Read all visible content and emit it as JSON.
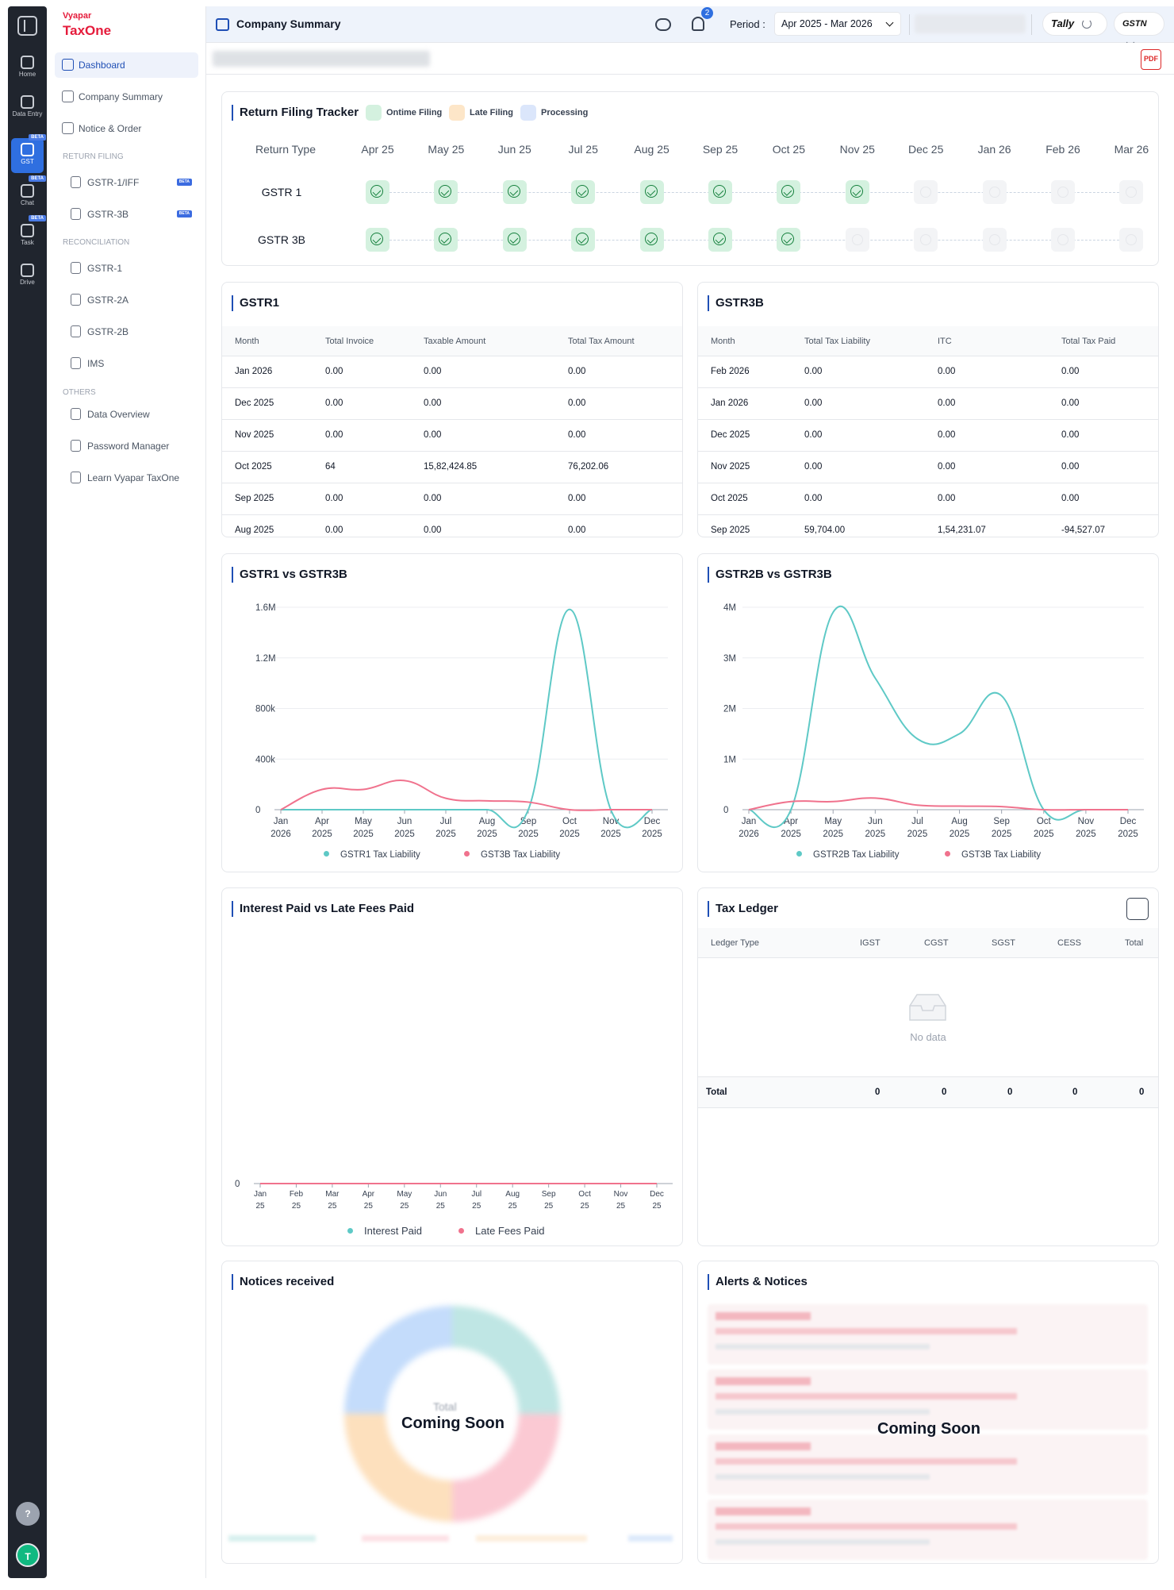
{
  "rail": {
    "items": [
      {
        "label": "Home",
        "beta": ""
      },
      {
        "label": "Data Entry",
        "beta": ""
      },
      {
        "label": "GST",
        "beta": "BETA"
      },
      {
        "label": "Chat",
        "beta": "BETA"
      },
      {
        "label": "Task",
        "beta": "BETA"
      },
      {
        "label": "Drive",
        "beta": ""
      }
    ],
    "help": "?",
    "avatar": "T"
  },
  "sidebar": {
    "logo_top": "Vyapar",
    "logo_bottom": "TaxOne",
    "dashboard": "Dashboard",
    "company_summary": "Company Summary",
    "notice_order": "Notice & Order",
    "section_return": "RETURN FILING",
    "gstr1_iff": "GSTR-1/IFF",
    "gstr3b": "GSTR-3B",
    "beta": "BETA",
    "section_recon": "RECONCILIATION",
    "gstr1": "GSTR-1",
    "gstr2a": "GSTR-2A",
    "gstr2b": "GSTR-2B",
    "ims": "IMS",
    "section_others": "OTHERS",
    "data_overview": "Data Overview",
    "password_manager": "Password Manager",
    "learn": "Learn Vyapar TaxOne"
  },
  "header": {
    "title": "Company Summary",
    "notif_count": "2",
    "period_label": "Period :",
    "period_value": "Apr 2025 - Mar 2026",
    "tally": "Tally",
    "gstn": "GSTN"
  },
  "tracker": {
    "title": "Return Filing Tracker",
    "legend": {
      "ontime": "Ontime Filing",
      "late": "Late Filing",
      "processing": "Processing"
    },
    "col_return_type": "Return Type",
    "months": [
      "Apr 25",
      "May 25",
      "Jun 25",
      "Jul 25",
      "Aug 25",
      "Sep 25",
      "Oct 25",
      "Nov 25",
      "Dec 25",
      "Jan 26",
      "Feb 26",
      "Mar 26"
    ],
    "rows": [
      {
        "label": "GSTR 1",
        "filed": 8
      },
      {
        "label": "GSTR 3B",
        "filed": 7
      }
    ]
  },
  "gstr1": {
    "title": "GSTR1",
    "headers": [
      "Month",
      "Total Invoice",
      "Taxable Amount",
      "Total Tax Amount"
    ],
    "rows": [
      [
        "Jan 2026",
        "0.00",
        "0.00",
        "0.00"
      ],
      [
        "Dec 2025",
        "0.00",
        "0.00",
        "0.00"
      ],
      [
        "Nov 2025",
        "0.00",
        "0.00",
        "0.00"
      ],
      [
        "Oct 2025",
        "64",
        "15,82,424.85",
        "76,202.06"
      ],
      [
        "Sep 2025",
        "0.00",
        "0.00",
        "0.00"
      ],
      [
        "Aug 2025",
        "0.00",
        "0.00",
        "0.00"
      ]
    ]
  },
  "gstr3b": {
    "title": "GSTR3B",
    "headers": [
      "Month",
      "Total Tax Liability",
      "ITC",
      "Total Tax Paid"
    ],
    "rows": [
      [
        "Feb 2026",
        "0.00",
        "0.00",
        "0.00"
      ],
      [
        "Jan 2026",
        "0.00",
        "0.00",
        "0.00"
      ],
      [
        "Dec 2025",
        "0.00",
        "0.00",
        "0.00"
      ],
      [
        "Nov 2025",
        "0.00",
        "0.00",
        "0.00"
      ],
      [
        "Oct 2025",
        "0.00",
        "0.00",
        "0.00"
      ],
      [
        "Sep 2025",
        "59,704.00",
        "1,54,231.07",
        "-94,527.07"
      ]
    ]
  },
  "chart_data": [
    {
      "type": "line",
      "title": "GSTR1 vs GSTR3B",
      "x": [
        "Jan 2026",
        "Apr 2025",
        "May 2025",
        "Jun 2025",
        "Jul 2025",
        "Aug 2025",
        "Sep 2025",
        "Oct 2025",
        "Nov 2025",
        "Dec 2025"
      ],
      "yticks": [
        "0",
        "400k",
        "800k",
        "1.2M",
        "1.6M"
      ],
      "ylim": [
        0,
        1600000
      ],
      "series": [
        {
          "name": "GSTR1 Tax Liability",
          "color": "#5ec9c6",
          "values": [
            0,
            0,
            0,
            0,
            0,
            0,
            0,
            1582425,
            0,
            0
          ]
        },
        {
          "name": "GST3B Tax Liability",
          "color": "#f0728d",
          "values": [
            0,
            160000,
            160000,
            230000,
            90000,
            70000,
            60000,
            0,
            0,
            0
          ]
        }
      ]
    },
    {
      "type": "line",
      "title": "GSTR2B vs GSTR3B",
      "x": [
        "Jan 2026",
        "Apr 2025",
        "May 2025",
        "Jun 2025",
        "Jul 2025",
        "Aug 2025",
        "Sep 2025",
        "Oct 2025",
        "Nov 2025",
        "Dec 2025"
      ],
      "yticks": [
        "0",
        "1M",
        "2M",
        "3M",
        "4M"
      ],
      "ylim": [
        0,
        4000000
      ],
      "series": [
        {
          "name": "GSTR2B Tax Liability",
          "color": "#5ec9c6",
          "values": [
            0,
            0,
            3900000,
            2600000,
            1400000,
            1500000,
            2250000,
            0,
            0,
            0
          ]
        },
        {
          "name": "GST3B Tax Liability",
          "color": "#f0728d",
          "values": [
            0,
            160000,
            160000,
            230000,
            90000,
            70000,
            60000,
            0,
            0,
            0
          ]
        }
      ]
    },
    {
      "type": "line",
      "title": "Interest Paid vs Late Fees Paid",
      "x": [
        "Jan 25",
        "Feb 25",
        "Mar 25",
        "Apr 25",
        "May 25",
        "Jun 25",
        "Jul 25",
        "Aug 25",
        "Sep 25",
        "Oct 25",
        "Nov 25",
        "Dec 25"
      ],
      "yticks": [
        "0"
      ],
      "ylim": [
        0,
        1
      ],
      "series": [
        {
          "name": "Interest Paid",
          "color": "#5ec9c6",
          "values": [
            0,
            0,
            0,
            0,
            0,
            0,
            0,
            0,
            0,
            0,
            0,
            0
          ]
        },
        {
          "name": "Late Fees Paid",
          "color": "#f0728d",
          "values": [
            0,
            0,
            0,
            0,
            0,
            0,
            0,
            0,
            0,
            0,
            0,
            0
          ]
        }
      ]
    }
  ],
  "ledger": {
    "title": "Tax Ledger",
    "headers": [
      "Ledger Type",
      "IGST",
      "CGST",
      "SGST",
      "CESS",
      "Total"
    ],
    "no_data": "No data",
    "total_label": "Total",
    "totals": [
      "0",
      "0",
      "0",
      "0",
      "0"
    ]
  },
  "notices": {
    "title": "Notices received",
    "coming": "Coming Soon",
    "center": "Total"
  },
  "alerts": {
    "title": "Alerts & Notices",
    "coming": "Coming Soon"
  },
  "colors": {
    "teal": "#5ec9c6",
    "pink": "#f0728d",
    "accent": "#1f4fb5"
  }
}
